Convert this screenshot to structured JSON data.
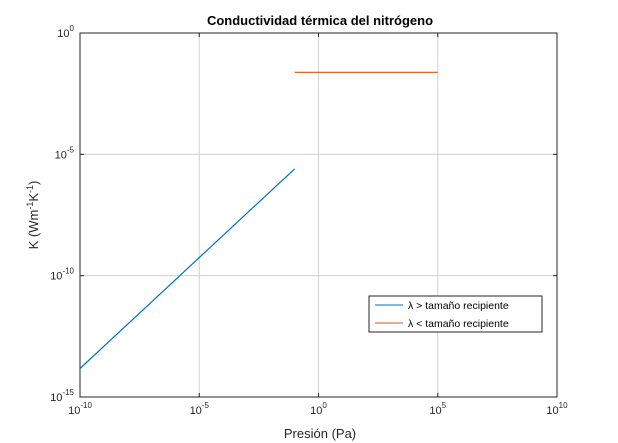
{
  "chart_data": {
    "type": "line",
    "title": "Conductividad térmica del nitrógeno",
    "xlabel": "Presión (Pa)",
    "ylabel": {
      "base": "K (Wm",
      "sup1": "-1",
      "mid": "K",
      "sup2": "-1",
      "end": ")"
    },
    "x_scale": "log",
    "y_scale": "log",
    "xlim_exp": [
      -10,
      10
    ],
    "ylim_exp": [
      -15,
      0
    ],
    "x_ticks": [
      {
        "base": "10",
        "exp": "-10",
        "value_exp": -10
      },
      {
        "base": "10",
        "exp": "-5",
        "value_exp": -5
      },
      {
        "base": "10",
        "exp": "0",
        "value_exp": 0
      },
      {
        "base": "10",
        "exp": "5",
        "value_exp": 5
      },
      {
        "base": "10",
        "exp": "10",
        "value_exp": 10
      }
    ],
    "y_ticks": [
      {
        "base": "10",
        "exp": "-15",
        "value_exp": -15
      },
      {
        "base": "10",
        "exp": "-10",
        "value_exp": -10
      },
      {
        "base": "10",
        "exp": "-5",
        "value_exp": -5
      },
      {
        "base": "10",
        "exp": "0",
        "value_exp": 0
      }
    ],
    "grid": true,
    "legend_location": "lower-right",
    "series": [
      {
        "name": "λ > tamaño recipiente",
        "color": "#0072bd",
        "points": [
          {
            "x": 1e-10,
            "y": 1.5e-14
          },
          {
            "x": 0.1,
            "y": 2.5e-06
          }
        ]
      },
      {
        "name": "λ < tamaño recipiente",
        "color": "#d95319",
        "points": [
          {
            "x": 0.1,
            "y": 0.024
          },
          {
            "x": 100000,
            "y": 0.024
          }
        ]
      }
    ]
  }
}
